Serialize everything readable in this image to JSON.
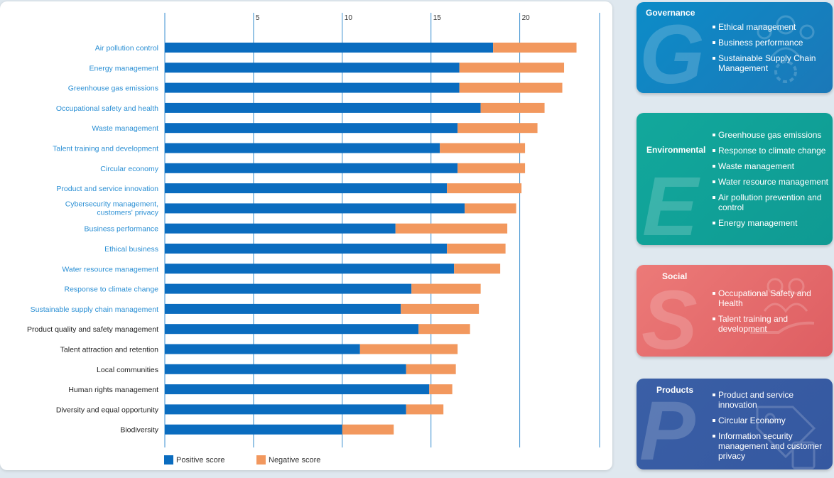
{
  "colors": {
    "positive": "#0a6cbf",
    "negative": "#f2985e",
    "label_blue": "#2a8fd4",
    "label_dark": "#222222",
    "governance": "#0c8cc8",
    "environmental": "#12a89c",
    "social": "#de5e62",
    "products": "#3a5fa6"
  },
  "chart_data": {
    "type": "bar",
    "orientation": "horizontal",
    "stacked": true,
    "xlim": [
      0,
      24.5
    ],
    "x_ticks": [
      5,
      10,
      15,
      20
    ],
    "grid": true,
    "legend_position": "bottom",
    "categories": [
      "Air pollution control",
      "Energy management",
      "Greenhouse gas emissions",
      "Occupational safety and health",
      "Waste management",
      "Talent training and development",
      "Circular economy",
      "Product and service innovation",
      "Cybersecurity management, customers' privacy",
      "Business performance",
      "Ethical business",
      "Water resource management",
      "Response to climate change",
      "Sustainable supply chain management",
      "Product quality and safety management",
      "Talent attraction and retention",
      "Local communities",
      "Human rights management",
      "Diversity and equal opportunity",
      "Biodiversity"
    ],
    "highlighted_count": 14,
    "series": [
      {
        "name": "Positive score",
        "values": [
          18.5,
          16.6,
          16.6,
          17.8,
          16.5,
          15.5,
          16.5,
          15.9,
          16.9,
          13.0,
          15.9,
          16.3,
          13.9,
          13.3,
          14.3,
          11.0,
          13.6,
          14.9,
          13.6,
          10.0
        ]
      },
      {
        "name": "Negative score",
        "values": [
          4.7,
          5.9,
          5.8,
          3.6,
          4.5,
          4.8,
          3.8,
          4.2,
          2.9,
          6.3,
          3.3,
          2.6,
          3.9,
          4.4,
          2.9,
          5.5,
          2.8,
          1.3,
          2.1,
          2.9
        ]
      }
    ]
  },
  "panels": {
    "governance": {
      "title": "Governance",
      "letter": "G",
      "items": [
        "Ethical management",
        "Business performance",
        "Sustainable Supply Chain Management"
      ]
    },
    "environmental": {
      "title": "Environmental",
      "letter": "E",
      "items": [
        "Greenhouse gas emissions",
        "Response to climate change",
        "Waste management",
        "Water resource management",
        "Air pollution prevention and control",
        "Energy management"
      ]
    },
    "social": {
      "title": "Social",
      "letter": "S",
      "items": [
        "Occupational Safety and Health",
        "Talent training and development"
      ]
    },
    "products": {
      "title": "Products",
      "letter": "P",
      "items": [
        "Product and service innovation",
        "Circular Economy",
        "Information security management and customer privacy"
      ]
    }
  }
}
